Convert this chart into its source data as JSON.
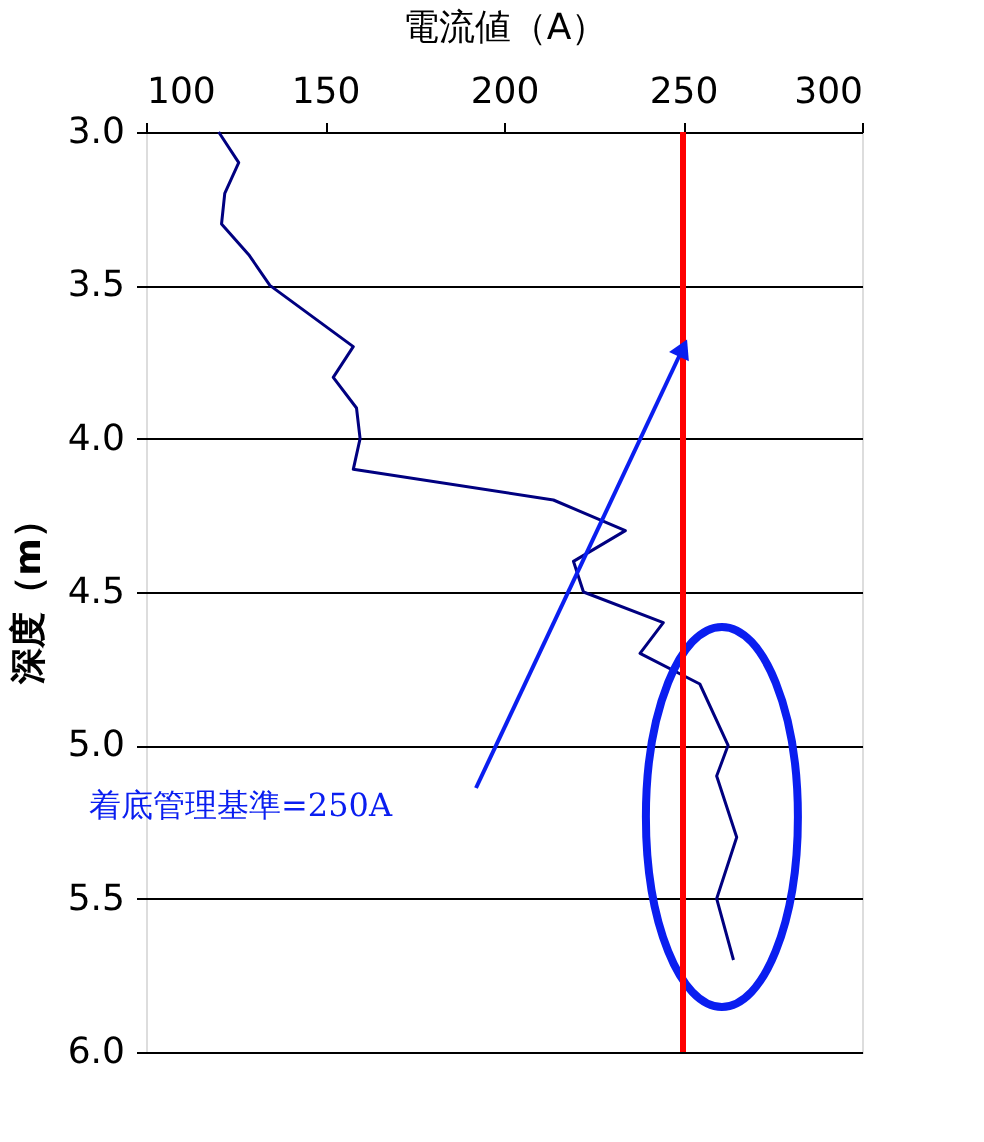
{
  "chart_data": {
    "type": "line",
    "xlabel": "電流値（A）",
    "ylabel": "深度（m）",
    "xlim": [
      100,
      300
    ],
    "xticks": [
      100,
      150,
      200,
      250,
      300
    ],
    "ylim": [
      6.0,
      3.0
    ],
    "yticks": [
      {
        "value": 3.0,
        "label": "3.0"
      },
      {
        "value": 3.5,
        "label": "3.5"
      },
      {
        "value": 4.0,
        "label": "4.0"
      },
      {
        "value": 4.5,
        "label": "4.5"
      },
      {
        "value": 5.0,
        "label": "5.0"
      },
      {
        "value": 5.5,
        "label": "5.5"
      },
      {
        "value": 6.0,
        "label": "6.0"
      }
    ],
    "grid": "y",
    "series": [
      {
        "color": "#000080",
        "x": [
          120.3,
          125.9,
          122.0,
          121.1,
          128.7,
          134.6,
          157.9,
          152.3,
          158.8,
          159.8,
          157.9,
          213.8,
          233.9,
          219.4,
          222.2,
          244.5,
          238.0,
          254.7,
          262.6,
          259.4,
          265.0,
          259.4,
          264.1
        ],
        "values": [
          3.0,
          3.1,
          3.2,
          3.3,
          3.4,
          3.5,
          3.7,
          3.8,
          3.9,
          4.0,
          4.1,
          4.2,
          4.3,
          4.4,
          4.5,
          4.6,
          4.7,
          4.8,
          5.0,
          5.1,
          5.3,
          5.5,
          5.7
        ]
      }
    ],
    "ref_lines": [
      {
        "axis": "x",
        "value": 250,
        "color": "#ff0000"
      }
    ],
    "annotations": [
      "着底管理基準=250A"
    ]
  }
}
